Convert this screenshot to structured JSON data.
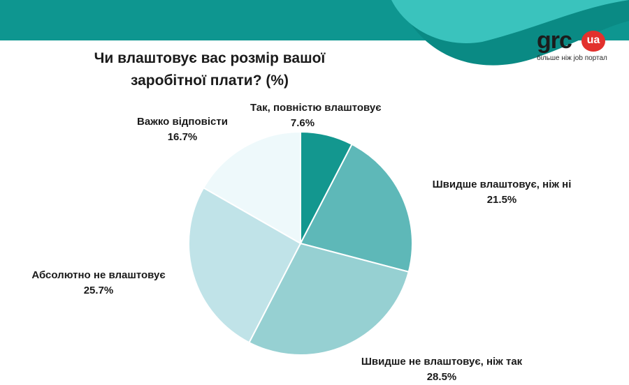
{
  "header": {
    "band_color": "#0e9690",
    "swoosh_color_light": "#3ac3bd",
    "swoosh_color_dark": "#0a8a84"
  },
  "logo": {
    "brand": "grc",
    "badge": "ua",
    "tagline": "більше ніж job портал",
    "badge_color": "#e2312d"
  },
  "chart_data": {
    "type": "pie",
    "title_lines": [
      "Чи влаштовує вас розмір вашої",
      "заробітної плати? (%)"
    ],
    "start": "12 o'clock",
    "direction": "clockwise",
    "slices": [
      {
        "label": "Так, повністю влаштовує",
        "value": 7.6,
        "display": "7.6%",
        "color": "#13978f"
      },
      {
        "label": "Швидше влаштовує, ніж ні",
        "value": 21.5,
        "display": "21.5%",
        "color": "#5eb8b8"
      },
      {
        "label": "Швидше не влаштовує, ніж так",
        "value": 28.5,
        "display": "28.5%",
        "color": "#96d0d2"
      },
      {
        "label": "Абсолютно не влаштовує",
        "value": 25.7,
        "display": "25.7%",
        "color": "#c0e3e8"
      },
      {
        "label": "Важко відповісти",
        "value": 16.7,
        "display": "16.7%",
        "color": "#eef9fb"
      }
    ]
  }
}
